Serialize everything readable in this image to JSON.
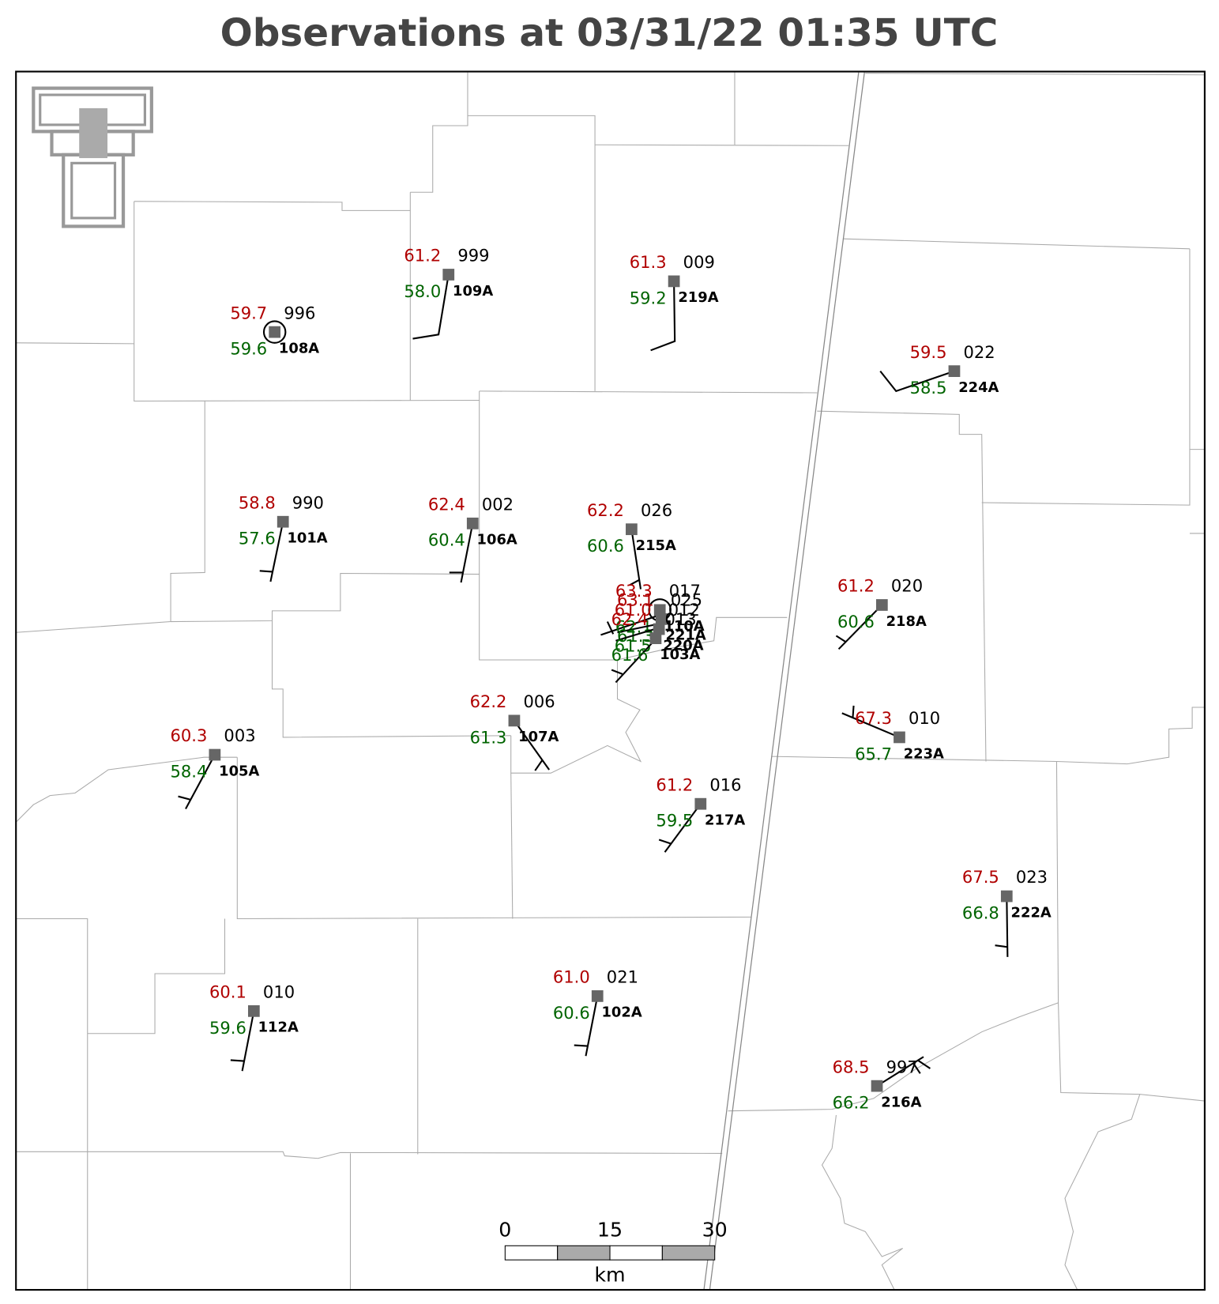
{
  "title": "Observations at 03/31/22 01:35 UTC",
  "stations": [
    {
      "id": "108A",
      "temperature": "59.7",
      "dewpoint": "59.6",
      "pressure": "996"
    },
    {
      "id": "109A",
      "temperature": "61.2",
      "dewpoint": "58.0",
      "pressure": "999"
    },
    {
      "id": "219A",
      "temperature": "61.3",
      "dewpoint": "59.2",
      "pressure": "009"
    },
    {
      "id": "224A",
      "temperature": "59.5",
      "dewpoint": "58.5",
      "pressure": "022"
    },
    {
      "id": "101A",
      "temperature": "58.8",
      "dewpoint": "57.6",
      "pressure": "990"
    },
    {
      "id": "106A",
      "temperature": "62.4",
      "dewpoint": "60.4",
      "pressure": "002"
    },
    {
      "id": "215A",
      "temperature": "62.2",
      "dewpoint": "60.6",
      "pressure": "026"
    },
    {
      "id": "110A",
      "temperature": "63.3",
      "dewpoint": "62.1",
      "pressure": "017"
    },
    {
      "id": "221A",
      "temperature": "63.1",
      "dewpoint": "61.3",
      "pressure": "025"
    },
    {
      "id": "220A",
      "temperature": "61.0",
      "dewpoint": "61.5",
      "pressure": "012"
    },
    {
      "id": "103A",
      "temperature": "62.4",
      "dewpoint": "61.6",
      "pressure": "013"
    },
    {
      "id": "107A",
      "temperature": "62.2",
      "dewpoint": "61.3",
      "pressure": "006"
    },
    {
      "id": "218A",
      "temperature": "61.2",
      "dewpoint": "60.6",
      "pressure": "020"
    },
    {
      "id": "105A",
      "temperature": "60.3",
      "dewpoint": "58.4",
      "pressure": "003"
    },
    {
      "id": "223A",
      "temperature": "67.3",
      "dewpoint": "65.7",
      "pressure": "010"
    },
    {
      "id": "217A",
      "temperature": "61.2",
      "dewpoint": "59.5",
      "pressure": "016"
    },
    {
      "id": "222A",
      "temperature": "67.5",
      "dewpoint": "66.8",
      "pressure": "023"
    },
    {
      "id": "112A",
      "temperature": "60.1",
      "dewpoint": "59.6",
      "pressure": "010"
    },
    {
      "id": "102A",
      "temperature": "61.0",
      "dewpoint": "60.6",
      "pressure": "021"
    },
    {
      "id": "216A",
      "temperature": "68.5",
      "dewpoint": "66.2",
      "pressure": "997"
    }
  ],
  "scale_bar": {
    "labels": [
      "0",
      "15",
      "30"
    ],
    "unit": "km"
  }
}
